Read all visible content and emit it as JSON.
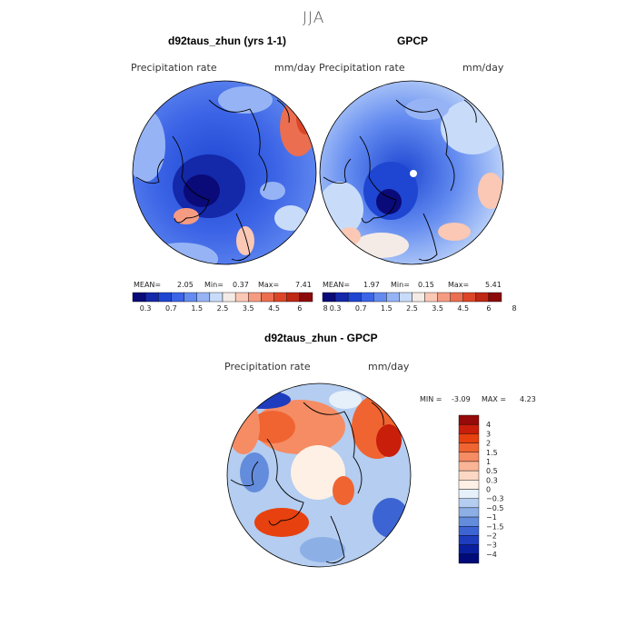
{
  "figure": {
    "season": "JJA",
    "panels": [
      {
        "title": "d92taus_zhun (yrs 1-1)",
        "variable": "Precipitation rate",
        "units": "mm/day",
        "stats": {
          "mean_label": "MEAN=",
          "mean": "2.05",
          "min_label": "Min=",
          "min": "0.37",
          "max_label": "Max=",
          "max": "7.41"
        }
      },
      {
        "title": "GPCP",
        "variable": "Precipitation rate",
        "units": "mm/day",
        "stats": {
          "mean_label": "MEAN=",
          "mean": "1.97",
          "min_label": "Min=",
          "min": "0.15",
          "max_label": "Max=",
          "max": "5.41"
        }
      },
      {
        "title": "d92taus_zhun - GPCP",
        "variable": "Precipitation rate",
        "units": "mm/day",
        "stats": {
          "min_label": "MIN =",
          "min": "-3.09",
          "max_label": "MAX =",
          "max": "4.23"
        }
      }
    ],
    "field_colorbar": {
      "tick_labels": [
        "0.3",
        "0.7",
        "1.5",
        "2.5",
        "3.5",
        "4.5",
        "6",
        "8"
      ],
      "colors": [
        "#0a0a78",
        "#1428aa",
        "#1e46d2",
        "#3c64e6",
        "#648cf0",
        "#96b4f5",
        "#c8dcfa",
        "#f5ebe6",
        "#fac8b4",
        "#f59b82",
        "#eb6e50",
        "#dc4628",
        "#be2814",
        "#8c0a0a"
      ]
    },
    "diff_colorbar": {
      "levels": [
        "4",
        "3",
        "2",
        "1.5",
        "1",
        "0.5",
        "0.3",
        "0",
        "−0.3",
        "−0.5",
        "−1",
        "−1.5",
        "−2",
        "−3",
        "−4"
      ],
      "colors": [
        "#960a0a",
        "#c81e0a",
        "#e6410f",
        "#f06432",
        "#f58c64",
        "#fab496",
        "#fcd8c4",
        "#fff0e6",
        "#e6f0fa",
        "#b4cdf0",
        "#8cafe6",
        "#648cdc",
        "#3c64d2",
        "#1e3cbe",
        "#0a1ea0",
        "#000a78"
      ]
    }
  }
}
